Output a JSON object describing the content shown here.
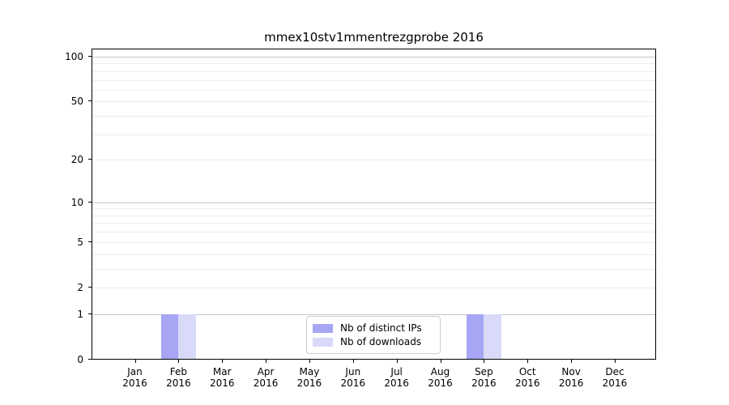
{
  "title": "mmex10stv1mmentrezgprobe 2016",
  "colors": {
    "distinct_ips": "#a6a6f4",
    "downloads": "#d9d9f9",
    "grid_major": "#c6c6c6",
    "grid_minor": "#ececec",
    "axis": "#000000",
    "legend_border": "#cccccc"
  },
  "legend": {
    "entries": [
      {
        "label": "Nb of distinct IPs",
        "color_key": "distinct_ips"
      },
      {
        "label": "Nb of downloads",
        "color_key": "downloads"
      }
    ]
  },
  "y_axis": {
    "tick_labels": [
      "0",
      "1",
      "2",
      "5",
      "10",
      "20",
      "50",
      "100"
    ],
    "tick_values": [
      0,
      1,
      2,
      5,
      10,
      20,
      50,
      100
    ],
    "major_grid_values": [
      1,
      10,
      100
    ],
    "minor_grid_values": [
      2,
      3,
      4,
      5,
      6,
      7,
      8,
      9,
      20,
      30,
      40,
      50,
      60,
      70,
      80,
      90
    ]
  },
  "x_axis": {
    "months": [
      "Jan",
      "Feb",
      "Mar",
      "Apr",
      "May",
      "Jun",
      "Jul",
      "Aug",
      "Sep",
      "Oct",
      "Nov",
      "Dec"
    ],
    "year": "2016"
  },
  "chart_data": {
    "type": "bar",
    "title": "mmex10stv1mmentrezgprobe 2016",
    "categories": [
      "Jan 2016",
      "Feb 2016",
      "Mar 2016",
      "Apr 2016",
      "May 2016",
      "Jun 2016",
      "Jul 2016",
      "Aug 2016",
      "Sep 2016",
      "Oct 2016",
      "Nov 2016",
      "Dec 2016"
    ],
    "series": [
      {
        "name": "Nb of distinct IPs",
        "values": [
          0,
          1,
          0,
          0,
          0,
          0,
          0,
          0,
          1,
          0,
          0,
          0
        ]
      },
      {
        "name": "Nb of downloads",
        "values": [
          0,
          1,
          0,
          0,
          0,
          0,
          0,
          0,
          1,
          0,
          0,
          0
        ]
      }
    ],
    "yscale": "log1p",
    "yticks": [
      0,
      1,
      2,
      5,
      10,
      20,
      50,
      100
    ],
    "ylim": [
      0,
      113
    ],
    "grid": true,
    "legend_position": "lower center"
  }
}
